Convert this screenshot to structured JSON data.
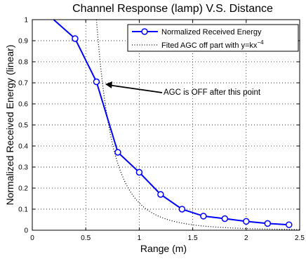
{
  "chart_data": {
    "type": "line",
    "title": "Channel Response (lamp) V.S. Distance",
    "xlabel": "Range (m)",
    "ylabel": "Normalized Received Energy (linear)",
    "xlim": [
      0,
      2.5
    ],
    "ylim": [
      0,
      1
    ],
    "xticks": [
      "0",
      "0.5",
      "1",
      "1.5",
      "2",
      "2.5"
    ],
    "yticks": [
      "0",
      "0.1",
      "0.2",
      "0.3",
      "0.4",
      "0.5",
      "0.6",
      "0.7",
      "0.8",
      "0.9",
      "1"
    ],
    "grid": true,
    "legend_position": "top-right",
    "series": [
      {
        "name": "Normalized Received Energy",
        "style": "solid line with circle markers",
        "color": "#0000ff",
        "x": [
          0.2,
          0.4,
          0.6,
          0.8,
          1.0,
          1.2,
          1.4,
          1.6,
          1.8,
          2.0,
          2.2,
          2.4
        ],
        "y": [
          1.0,
          0.91,
          0.705,
          0.37,
          0.275,
          0.17,
          0.1,
          0.067,
          0.055,
          0.042,
          0.032,
          0.026
        ],
        "markers": [
          false,
          true,
          true,
          true,
          true,
          true,
          true,
          true,
          true,
          true,
          true,
          true
        ]
      },
      {
        "name_prefix": "Fited AGC off part with y=kx",
        "name_exponent": "−4",
        "style": "dotted line",
        "color": "#000000",
        "model": "y = k*x^-4",
        "k": 0.1296
      }
    ],
    "annotations": [
      {
        "text": "AGC is OFF after this point",
        "points_to": [
          0.6,
          0.705
        ]
      }
    ]
  }
}
